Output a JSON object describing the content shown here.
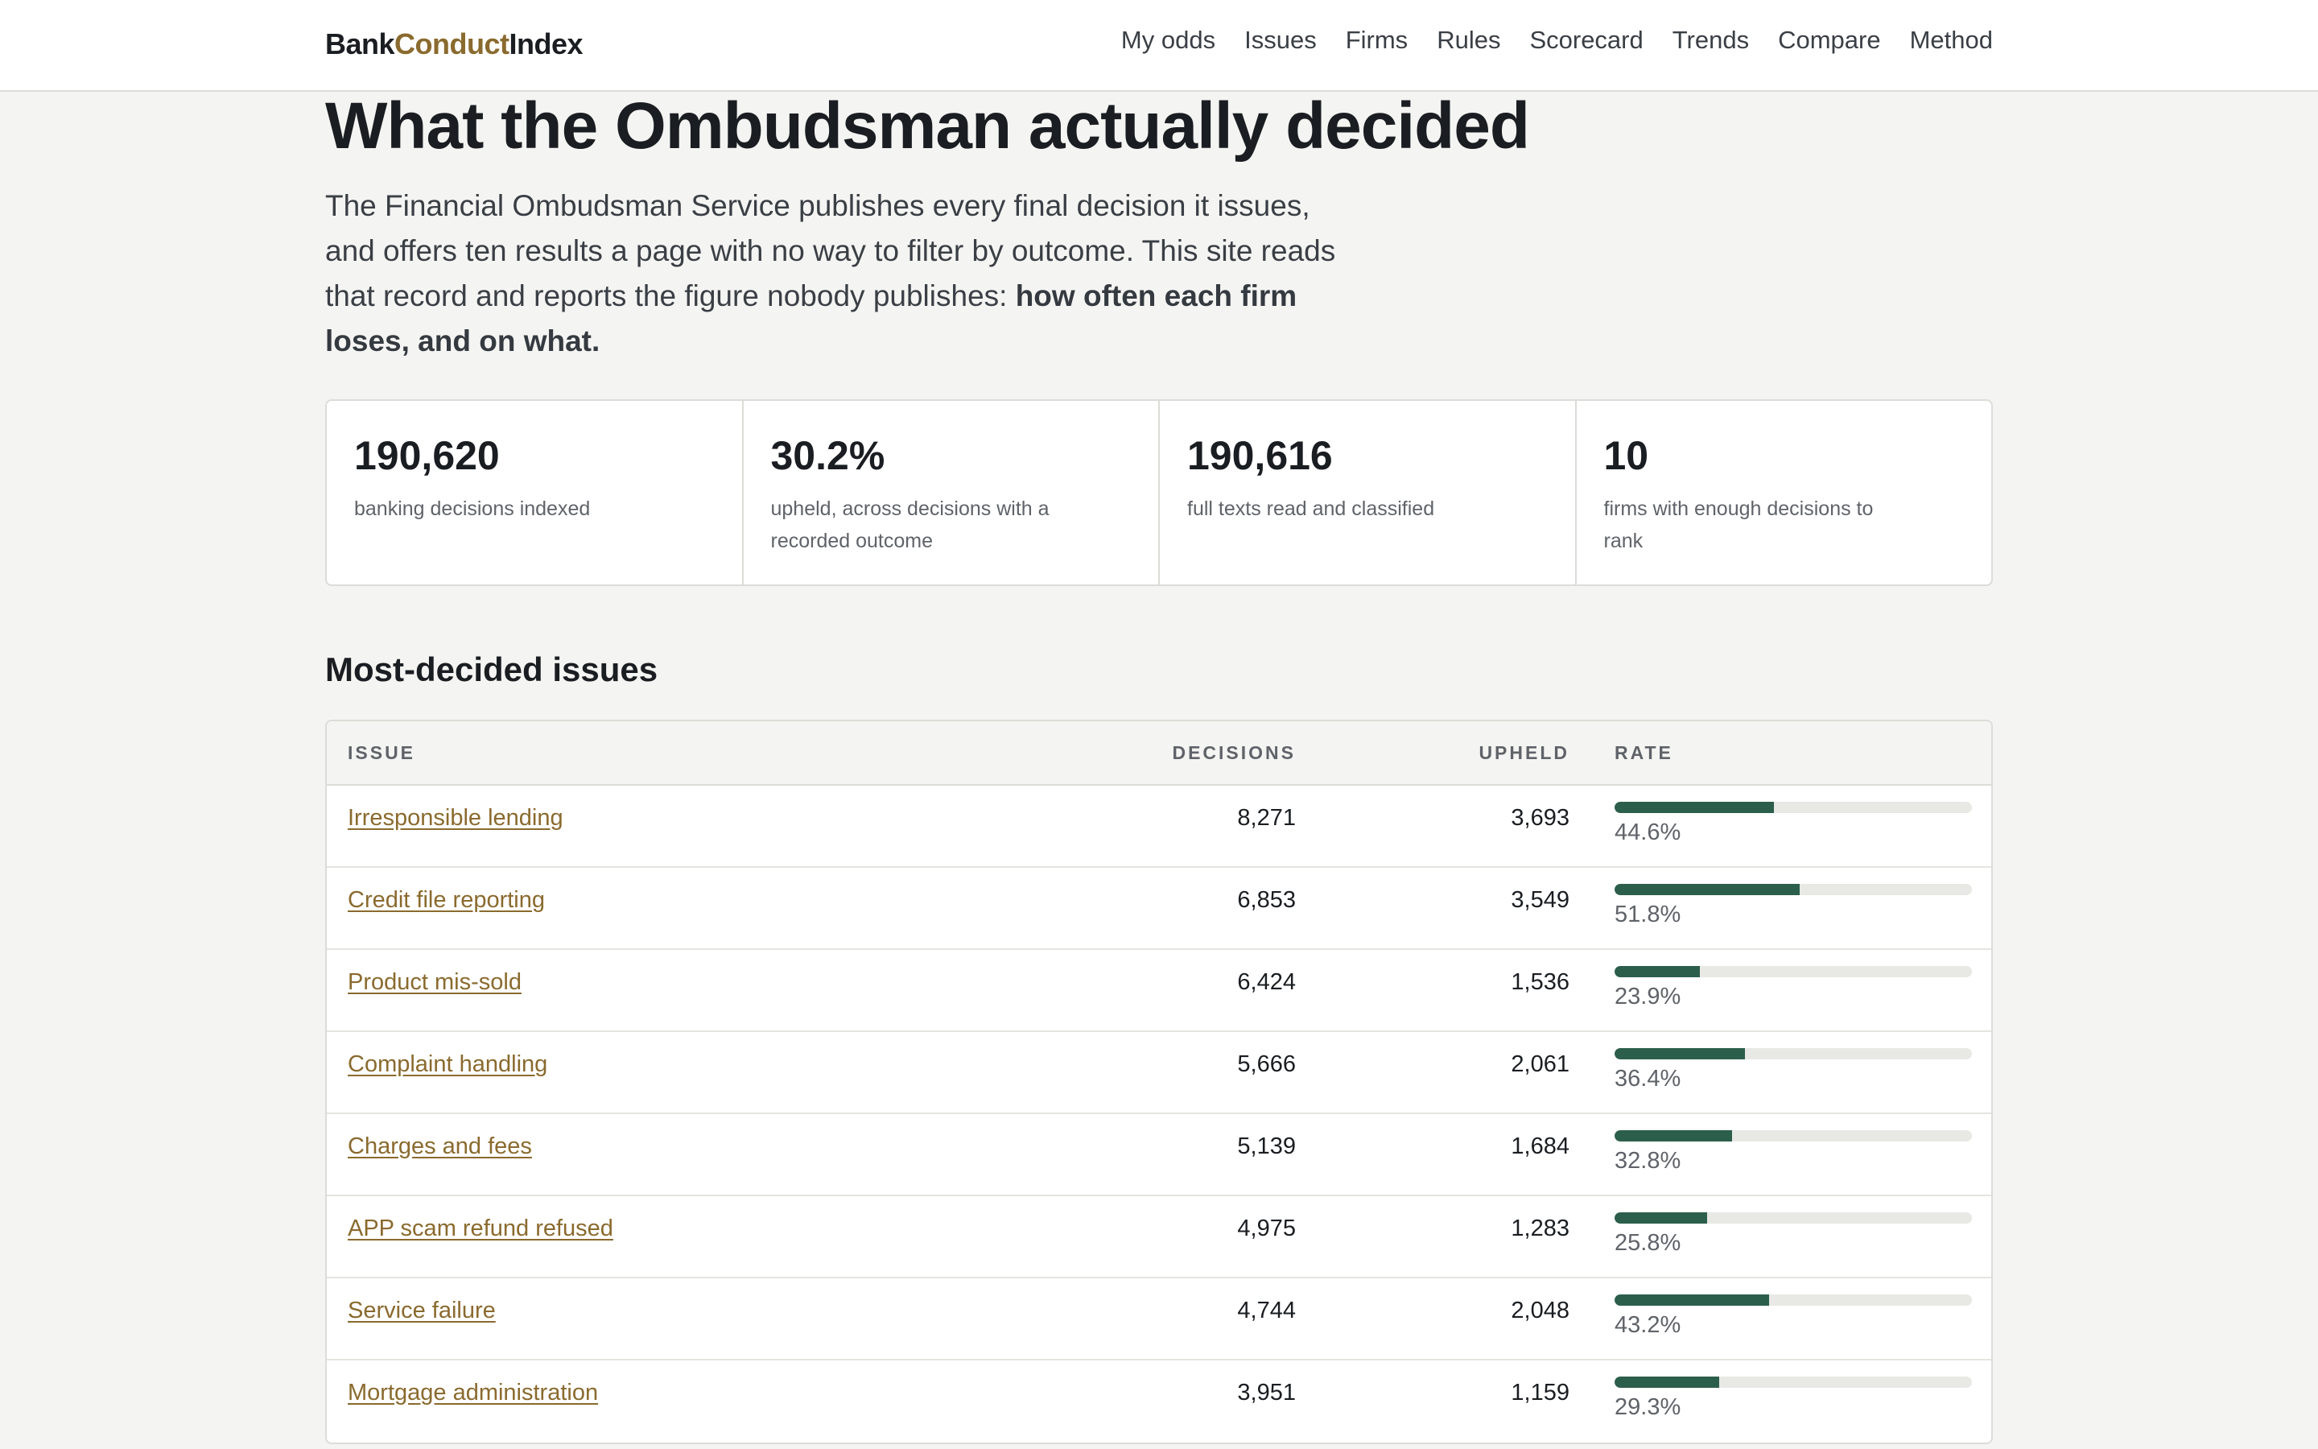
{
  "brand": {
    "part1": "Bank",
    "part2": "Conduct",
    "part3": "Index"
  },
  "nav": [
    "My odds",
    "Issues",
    "Firms",
    "Rules",
    "Scorecard",
    "Trends",
    "Compare",
    "Method"
  ],
  "hero": {
    "title": "What the Ombudsman actually decided",
    "lede": "The Financial Ombudsman Service publishes every final decision it issues, and offers ten results a page with no way to filter by outcome. This site reads that record and reports the figure nobody publishes: ",
    "lede_bold": "how often each firm loses, and on what."
  },
  "stats": [
    {
      "value": "190,620",
      "label": "banking decisions indexed"
    },
    {
      "value": "30.2%",
      "label": "upheld, across decisions with a recorded outcome"
    },
    {
      "value": "190,616",
      "label": "full texts read and classified"
    },
    {
      "value": "10",
      "label": "firms with enough decisions to rank"
    }
  ],
  "issues_section": {
    "title": "Most-decided issues",
    "headers": {
      "issue": "ISSUE",
      "decisions": "DECISIONS",
      "upheld": "UPHELD",
      "rate": "RATE"
    },
    "rows": [
      {
        "issue": "Irresponsible lending",
        "decisions": "8,271",
        "upheld": "3,693",
        "rate": 44.6,
        "rate_label": "44.6%"
      },
      {
        "issue": "Credit file reporting",
        "decisions": "6,853",
        "upheld": "3,549",
        "rate": 51.8,
        "rate_label": "51.8%"
      },
      {
        "issue": "Product mis-sold",
        "decisions": "6,424",
        "upheld": "1,536",
        "rate": 23.9,
        "rate_label": "23.9%"
      },
      {
        "issue": "Complaint handling",
        "decisions": "5,666",
        "upheld": "2,061",
        "rate": 36.4,
        "rate_label": "36.4%"
      },
      {
        "issue": "Charges and fees",
        "decisions": "5,139",
        "upheld": "1,684",
        "rate": 32.8,
        "rate_label": "32.8%"
      },
      {
        "issue": "APP scam refund refused",
        "decisions": "4,975",
        "upheld": "1,283",
        "rate": 25.8,
        "rate_label": "25.8%"
      },
      {
        "issue": "Service failure",
        "decisions": "4,744",
        "upheld": "2,048",
        "rate": 43.2,
        "rate_label": "43.2%"
      },
      {
        "issue": "Mortgage administration",
        "decisions": "3,951",
        "upheld": "1,159",
        "rate": 29.3,
        "rate_label": "29.3%"
      }
    ]
  },
  "colors": {
    "accent": "#8a6a2e",
    "bar": "#2c5e4c",
    "track": "#e8e8e4"
  }
}
